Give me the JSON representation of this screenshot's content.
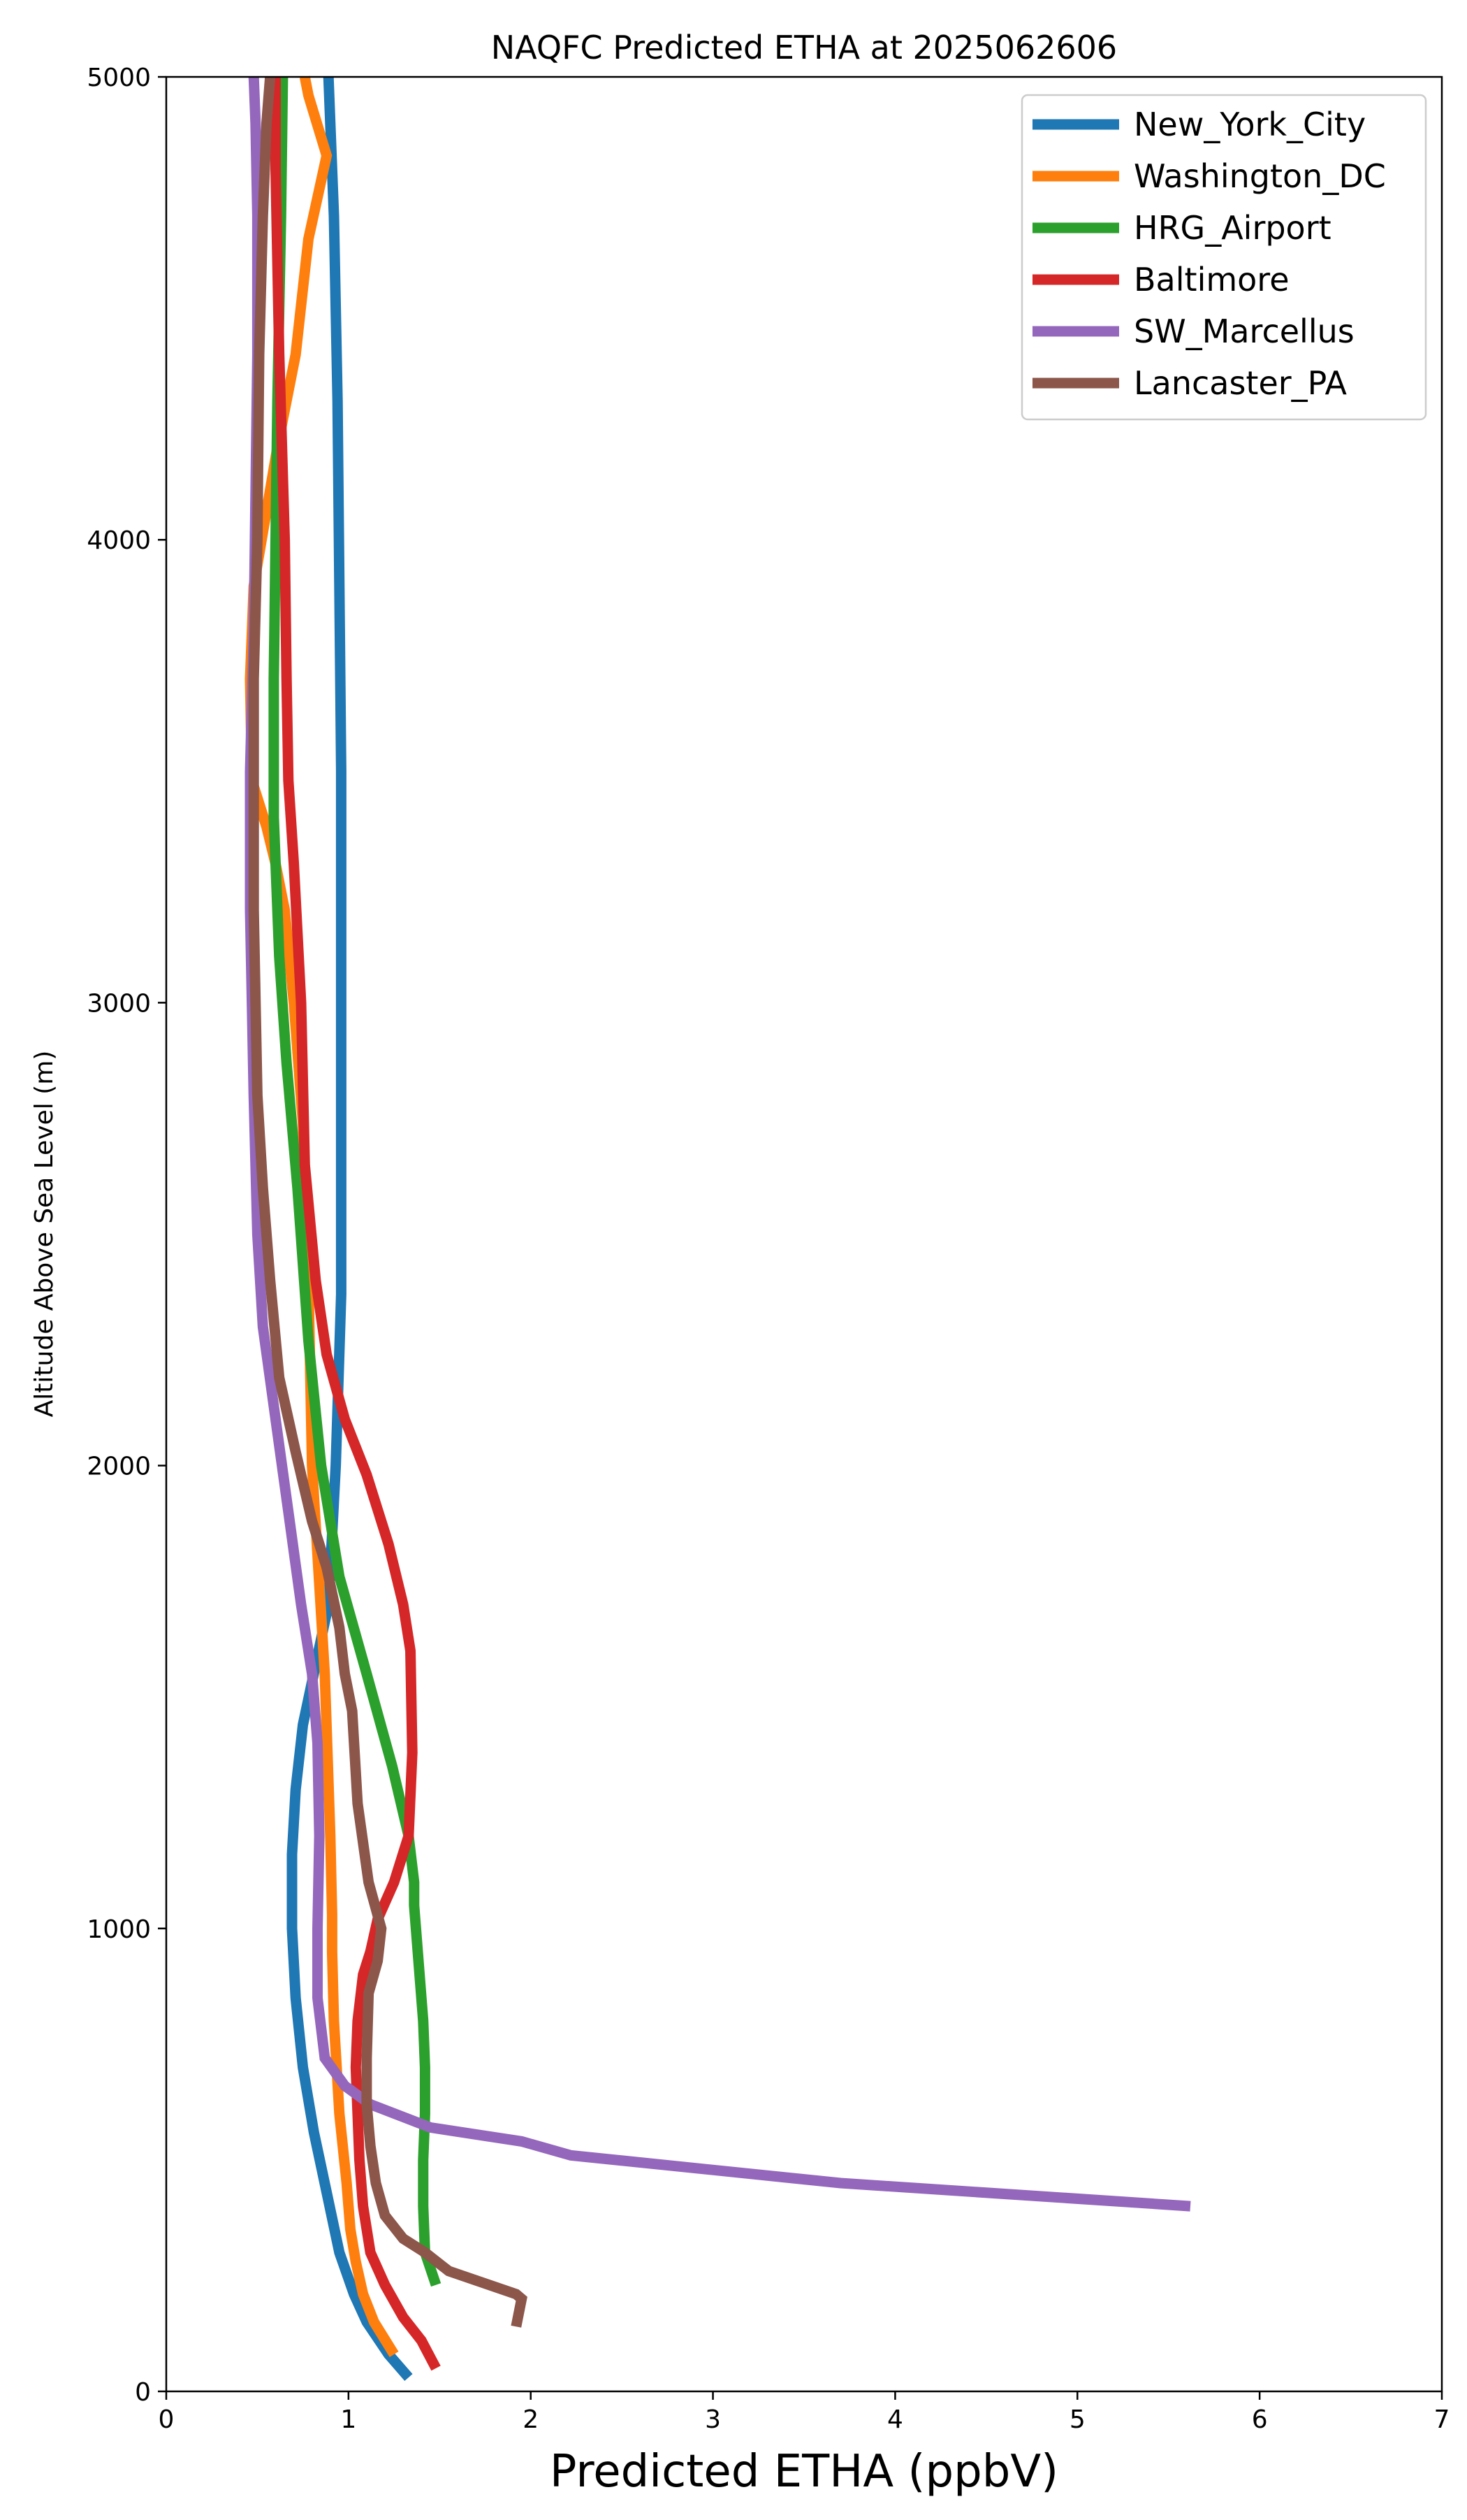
{
  "chart_data": {
    "type": "line",
    "title": "NAQFC Predicted ETHA at 2025062606",
    "xlabel": "Predicted ETHA (ppbV)",
    "ylabel": "Altitude Above Sea Level (m)",
    "xlim": [
      0,
      7
    ],
    "ylim": [
      0,
      5000
    ],
    "xticks": [
      "0",
      "1",
      "2",
      "3",
      "4",
      "5",
      "6",
      "7"
    ],
    "yticks": [
      "0",
      "1000",
      "2000",
      "3000",
      "4000",
      "5000"
    ],
    "grid": false,
    "legend_position": "top-right",
    "series": [
      {
        "name": "New_York_City",
        "color": "#1f77b4",
        "x": [
          1.33,
          1.22,
          1.1,
          1.03,
          0.95,
          0.88,
          0.81,
          0.75,
          0.71,
          0.69,
          0.69,
          0.71,
          0.75,
          0.82,
          0.89,
          0.93,
          0.96,
          0.96,
          0.96,
          0.95,
          0.94,
          0.92,
          0.89
        ],
        "y": [
          30,
          80,
          150,
          210,
          300,
          430,
          560,
          700,
          850,
          1000,
          1160,
          1300,
          1440,
          1570,
          1700,
          2000,
          2370,
          3000,
          3500,
          3900,
          4300,
          4700,
          5000
        ]
      },
      {
        "name": "Washington_DC",
        "color": "#ff7f0e",
        "x": [
          1.25,
          1.14,
          1.08,
          1.04,
          1.01,
          0.99,
          0.95,
          0.92,
          0.91,
          0.91,
          0.9,
          0.87,
          0.8,
          0.78,
          0.75,
          0.7,
          0.65,
          0.6,
          0.55,
          0.47,
          0.46,
          0.48,
          0.61,
          0.71,
          0.78,
          0.88,
          0.78,
          0.76
        ],
        "y": [
          80,
          150,
          210,
          280,
          350,
          450,
          600,
          800,
          950,
          1030,
          1200,
          1550,
          2000,
          2400,
          2740,
          3000,
          3200,
          3300,
          3380,
          3480,
          3700,
          3900,
          4200,
          4400,
          4650,
          4830,
          4960,
          5000
        ]
      },
      {
        "name": "HRG_Airport",
        "color": "#2ca02c",
        "x": [
          1.48,
          1.42,
          1.41,
          1.41,
          1.42,
          1.42,
          1.41,
          1.39,
          1.37,
          1.36,
          1.36,
          1.33,
          1.24,
          1.1,
          0.95,
          0.85,
          0.78,
          0.72,
          0.66,
          0.62,
          0.59,
          0.59,
          0.6,
          0.61,
          0.63,
          0.64
        ],
        "y": [
          230,
          300,
          400,
          500,
          600,
          700,
          800,
          900,
          1000,
          1050,
          1100,
          1200,
          1350,
          1550,
          1760,
          2000,
          2270,
          2600,
          2870,
          3100,
          3400,
          3700,
          4000,
          4300,
          4700,
          5000
        ]
      },
      {
        "name": "Baltimore",
        "color": "#d62728",
        "x": [
          1.48,
          1.4,
          1.3,
          1.2,
          1.12,
          1.08,
          1.06,
          1.05,
          1.04,
          1.05,
          1.08,
          1.12,
          1.16,
          1.25,
          1.33,
          1.35,
          1.34,
          1.3,
          1.22,
          1.1,
          0.98,
          0.88,
          0.82,
          0.76,
          0.74,
          0.7,
          0.67,
          0.66,
          0.65,
          0.62,
          0.6,
          0.6
        ],
        "y": [
          50,
          110,
          160,
          230,
          300,
          400,
          500,
          600,
          700,
          800,
          900,
          950,
          1020,
          1100,
          1200,
          1380,
          1600,
          1700,
          1830,
          1980,
          2100,
          2240,
          2400,
          2650,
          3000,
          3300,
          3480,
          3700,
          4000,
          4400,
          4800,
          5000
        ]
      },
      {
        "name": "SW_Marcellus",
        "color": "#9467bd",
        "x": [
          5.62,
          3.7,
          2.22,
          1.95,
          1.45,
          1.12,
          0.98,
          0.87,
          0.83,
          0.83,
          0.84,
          0.83,
          0.8,
          0.74,
          0.67,
          0.6,
          0.53,
          0.5,
          0.48,
          0.47,
          0.46,
          0.46,
          0.48,
          0.49,
          0.5,
          0.5,
          0.49,
          0.48
        ],
        "y": [
          400,
          450,
          510,
          540,
          570,
          620,
          660,
          720,
          850,
          1000,
          1200,
          1400,
          1550,
          1700,
          1900,
          2100,
          2300,
          2500,
          2800,
          3000,
          3200,
          3500,
          3800,
          4100,
          4400,
          4700,
          4900,
          5000
        ]
      },
      {
        "name": "Lancaster_PA",
        "color": "#8c564b",
        "x": [
          1.92,
          1.95,
          1.92,
          1.55,
          1.42,
          1.3,
          1.2,
          1.15,
          1.12,
          1.1,
          1.1,
          1.11,
          1.16,
          1.18,
          1.11,
          1.05,
          1.02,
          0.98,
          0.95,
          0.88,
          0.8,
          0.71,
          0.62,
          0.57,
          0.53,
          0.5,
          0.49,
          0.48,
          0.48,
          0.48,
          0.5,
          0.51,
          0.53,
          0.55,
          0.57
        ],
        "y": [
          140,
          200,
          210,
          260,
          300,
          330,
          380,
          450,
          530,
          620,
          720,
          860,
          930,
          1000,
          1100,
          1270,
          1470,
          1550,
          1650,
          1780,
          1880,
          2030,
          2190,
          2400,
          2600,
          2800,
          3000,
          3200,
          3400,
          3700,
          4000,
          4400,
          4700,
          4900,
          5000
        ]
      }
    ]
  }
}
